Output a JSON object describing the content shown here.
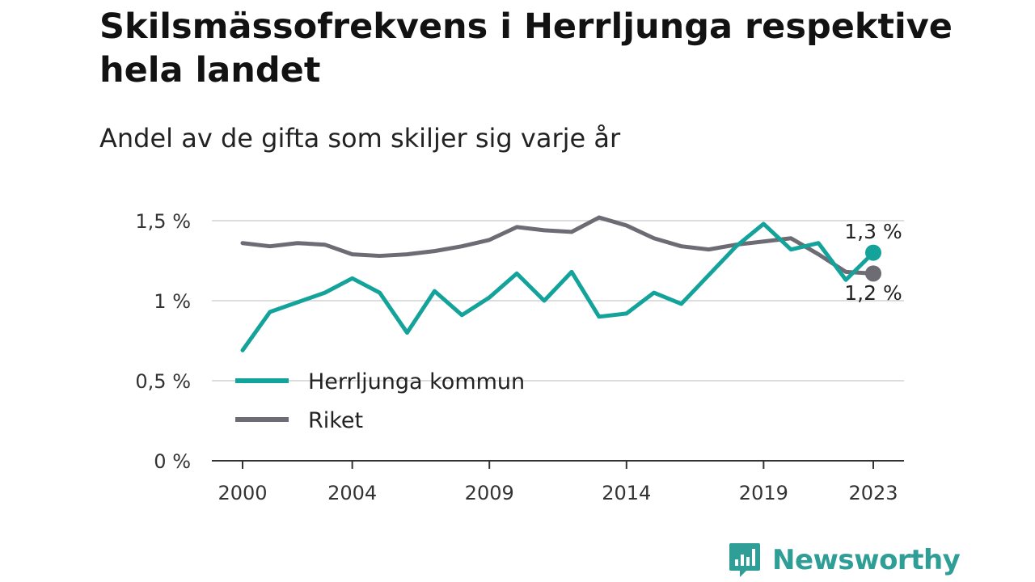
{
  "chart_data": {
    "type": "line",
    "title": "Skilsmässofrekvens i Herrljunga respektive hela landet",
    "subtitle": "Andel av de gifta som skiljer sig varje år",
    "x": [
      2000,
      2001,
      2002,
      2003,
      2004,
      2005,
      2006,
      2007,
      2008,
      2009,
      2010,
      2011,
      2012,
      2013,
      2014,
      2015,
      2016,
      2017,
      2018,
      2019,
      2020,
      2021,
      2022,
      2023
    ],
    "x_ticks": [
      "2000",
      "2004",
      "2009",
      "2014",
      "2019",
      "2023"
    ],
    "y_ticks": [
      "0 %",
      "0,5 %",
      "1 %",
      "1,5 %"
    ],
    "ylim": [
      0,
      1.5
    ],
    "grid": true,
    "legend_position": "bottom-left",
    "series": [
      {
        "name": "Herrljunga kommun",
        "color": "#14a39a",
        "values": [
          0.69,
          0.93,
          0.99,
          1.05,
          1.14,
          1.05,
          0.8,
          1.06,
          0.91,
          1.02,
          1.17,
          1.0,
          1.18,
          0.9,
          0.92,
          1.05,
          0.98,
          1.16,
          1.34,
          1.48,
          1.32,
          1.36,
          1.13,
          1.3
        ],
        "end_label": "1,3 %"
      },
      {
        "name": "Riket",
        "color": "#6d6b73",
        "values": [
          1.36,
          1.34,
          1.36,
          1.35,
          1.29,
          1.28,
          1.29,
          1.31,
          1.34,
          1.38,
          1.46,
          1.44,
          1.43,
          1.52,
          1.47,
          1.39,
          1.34,
          1.32,
          1.35,
          1.37,
          1.39,
          1.29,
          1.18,
          1.17
        ],
        "end_label": "1,2 %"
      }
    ]
  },
  "brand": {
    "name": "Newsworthy",
    "color": "#2f9e96"
  }
}
